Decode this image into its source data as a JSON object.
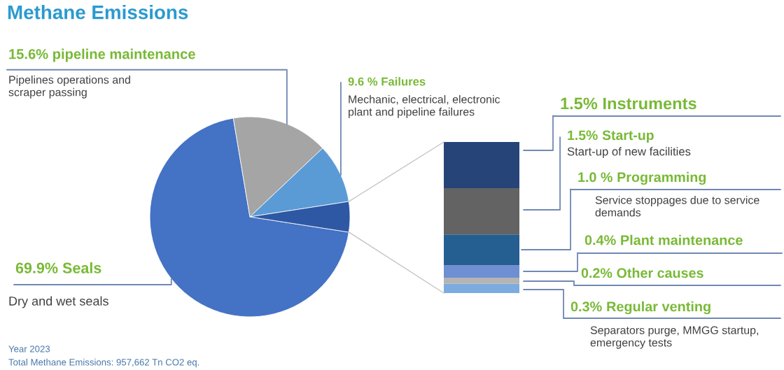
{
  "chart_data": [
    {
      "type": "pie",
      "title": "Methane Emissions",
      "categories": [
        "69.9% Seals",
        "15.6% pipeline maintenance",
        "9.6 % Failures",
        null
      ],
      "values": [
        69.9,
        15.6,
        9.6,
        4.9
      ],
      "colors": [
        "#4472c4",
        "#a5a5a5",
        "#5b9bd5",
        "#2e58a4"
      ],
      "annotations": [
        "Pipelines operations and\nscraper passing",
        "Mechanic, electrical, electronic\nplant and pipeline failures",
        "Dry and wet seals",
        "Year 2023",
        "Total Methane Emissions: 957,662 Tn CO2 eq."
      ]
    },
    {
      "type": "bar",
      "stacked": true,
      "categories": [
        null
      ],
      "series": [
        {
          "name": "Regular venting",
          "color": "#7cacdf",
          "values": [
            0.3
          ],
          "value_labels": [
            "0.3%"
          ]
        },
        {
          "name": "Other causes",
          "color": "#b4b4b4",
          "values": [
            0.2
          ],
          "value_labels": [
            "0.2%"
          ]
        },
        {
          "name": "Plant maintenance",
          "color": "#6e8fd2",
          "values": [
            0.4
          ],
          "value_labels": [
            "0.4%"
          ]
        },
        {
          "name": "Programming",
          "color": "#255e91",
          "values": [
            1.0
          ],
          "value_labels": [
            "1.0 %"
          ]
        },
        {
          "name": "Start-up",
          "color": "#636363",
          "values": [
            1.5
          ],
          "value_labels": [
            "1.5%"
          ]
        },
        {
          "name": "Instruments",
          "color": "#264478",
          "values": [
            1.5
          ],
          "value_labels": [
            "1.5%"
          ]
        }
      ],
      "annotations": [
        "Start-up of new facilities",
        "Service stoppages due to service\ndemands",
        "Separators purge, MMGG startup,\nemergency tests"
      ]
    }
  ]
}
